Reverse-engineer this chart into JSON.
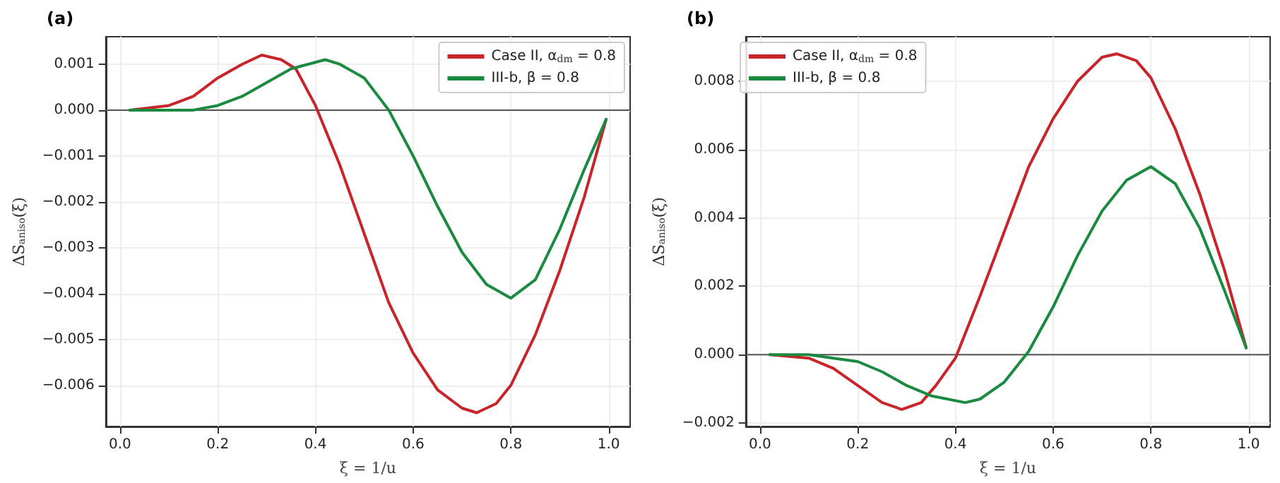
{
  "chart_data": [
    {
      "type": "line",
      "title": "(a)",
      "xlabel": "ξ = 1/u",
      "ylabel": "ΔS$_{aniso}$(ξ)",
      "legend": "top right",
      "grid": true,
      "line_style": "solid",
      "marker": "none",
      "xlim": [
        -0.029,
        1.044
      ],
      "xticks": [
        {
          "value": 0,
          "label": "0.0"
        },
        {
          "value": 0.2,
          "label": "0.2"
        },
        {
          "value": 0.4,
          "label": "0.4"
        },
        {
          "value": 0.6,
          "label": "0.6"
        },
        {
          "value": 0.8,
          "label": "0.8"
        },
        {
          "value": 1,
          "label": "1.0"
        }
      ],
      "ylim": [
        -0.0069,
        0.0016
      ],
      "yticks": [
        {
          "value": -0.006,
          "label": "−0.006"
        },
        {
          "value": -0.005,
          "label": "−0.005"
        },
        {
          "value": -0.004,
          "label": "−0.004"
        },
        {
          "value": -0.003,
          "label": "−0.003"
        },
        {
          "value": -0.002,
          "label": "−0.002"
        },
        {
          "value": -0.001,
          "label": "−0.001"
        },
        {
          "value": 0,
          "label": "0.000"
        },
        {
          "value": 0.001,
          "label": "0.001"
        }
      ],
      "ref_lines": [
        {
          "axis": "y",
          "value": 0,
          "color": "#555555"
        }
      ],
      "series": [
        {
          "name": "Case II, α$_{dm}$ = 0.8",
          "color": "#c8252b",
          "x": [
            0.02,
            0.1,
            0.15,
            0.2,
            0.25,
            0.29,
            0.33,
            0.36,
            0.4,
            0.45,
            0.5,
            0.55,
            0.6,
            0.65,
            0.7,
            0.73,
            0.77,
            0.8,
            0.85,
            0.9,
            0.95,
            0.995
          ],
          "values": [
            0,
            0.0001,
            0.0003,
            0.0007,
            0.001,
            0.0012,
            0.0011,
            0.0009,
            0.0001,
            -0.0012,
            -0.0027,
            -0.0042,
            -0.0053,
            -0.0061,
            -0.0065,
            -0.0066,
            -0.0064,
            -0.006,
            -0.0049,
            -0.0035,
            -0.0019,
            -0.0002
          ]
        },
        {
          "name": "III-b, β = 0.8",
          "color": "#1a8a40",
          "x": [
            0.02,
            0.1,
            0.15,
            0.2,
            0.25,
            0.3,
            0.35,
            0.42,
            0.45,
            0.5,
            0.55,
            0.6,
            0.65,
            0.7,
            0.75,
            0.8,
            0.85,
            0.9,
            0.95,
            0.995
          ],
          "values": [
            0,
            0,
            0,
            0.0001,
            0.0003,
            0.0006,
            0.0009,
            0.0011,
            0.001,
            0.0007,
            0,
            -0.001,
            -0.0021,
            -0.0031,
            -0.0038,
            -0.0041,
            -0.0037,
            -0.0026,
            -0.0013,
            -0.0002
          ]
        }
      ]
    },
    {
      "type": "line",
      "title": "(b)",
      "xlabel": "ξ = 1/u",
      "ylabel": "ΔS$_{aniso}$(ξ)",
      "legend": "top left",
      "grid": true,
      "line_style": "solid",
      "marker": "none",
      "xlim": [
        -0.029,
        1.044
      ],
      "xticks": [
        {
          "value": 0,
          "label": "0.0"
        },
        {
          "value": 0.2,
          "label": "0.2"
        },
        {
          "value": 0.4,
          "label": "0.4"
        },
        {
          "value": 0.6,
          "label": "0.6"
        },
        {
          "value": 0.8,
          "label": "0.8"
        },
        {
          "value": 1,
          "label": "1.0"
        }
      ],
      "ylim": [
        -0.0021,
        0.0093
      ],
      "yticks": [
        {
          "value": -0.002,
          "label": "−0.002"
        },
        {
          "value": 0,
          "label": "0.000"
        },
        {
          "value": 0.002,
          "label": "0.002"
        },
        {
          "value": 0.004,
          "label": "0.004"
        },
        {
          "value": 0.006,
          "label": "0.006"
        },
        {
          "value": 0.008,
          "label": "0.008"
        }
      ],
      "ref_lines": [
        {
          "axis": "y",
          "value": 0,
          "color": "#555555"
        }
      ],
      "series": [
        {
          "name": "Case II, α$_{dm}$ = 0.8",
          "color": "#c8252b",
          "x": [
            0.02,
            0.1,
            0.15,
            0.2,
            0.25,
            0.29,
            0.33,
            0.36,
            0.4,
            0.45,
            0.5,
            0.55,
            0.6,
            0.65,
            0.7,
            0.73,
            0.77,
            0.8,
            0.85,
            0.9,
            0.95,
            0.995
          ],
          "values": [
            0,
            -0.0001,
            -0.0004,
            -0.0009,
            -0.0014,
            -0.0016,
            -0.0014,
            -0.0009,
            -0.0001,
            0.0017,
            0.0036,
            0.0055,
            0.0069,
            0.008,
            0.0087,
            0.0088,
            0.0086,
            0.0081,
            0.0066,
            0.0047,
            0.0025,
            0.0002
          ]
        },
        {
          "name": "III-b, β = 0.8",
          "color": "#1a8a40",
          "x": [
            0.02,
            0.1,
            0.15,
            0.2,
            0.25,
            0.3,
            0.35,
            0.42,
            0.45,
            0.5,
            0.55,
            0.6,
            0.65,
            0.7,
            0.75,
            0.8,
            0.85,
            0.9,
            0.95,
            0.995
          ],
          "values": [
            0,
            0,
            -0.0001,
            -0.0002,
            -0.0005,
            -0.0009,
            -0.0012,
            -0.0014,
            -0.0013,
            -0.0008,
            0.0001,
            0.0014,
            0.0029,
            0.0042,
            0.0051,
            0.0055,
            0.005,
            0.0037,
            0.0019,
            0.0002
          ]
        }
      ]
    }
  ]
}
